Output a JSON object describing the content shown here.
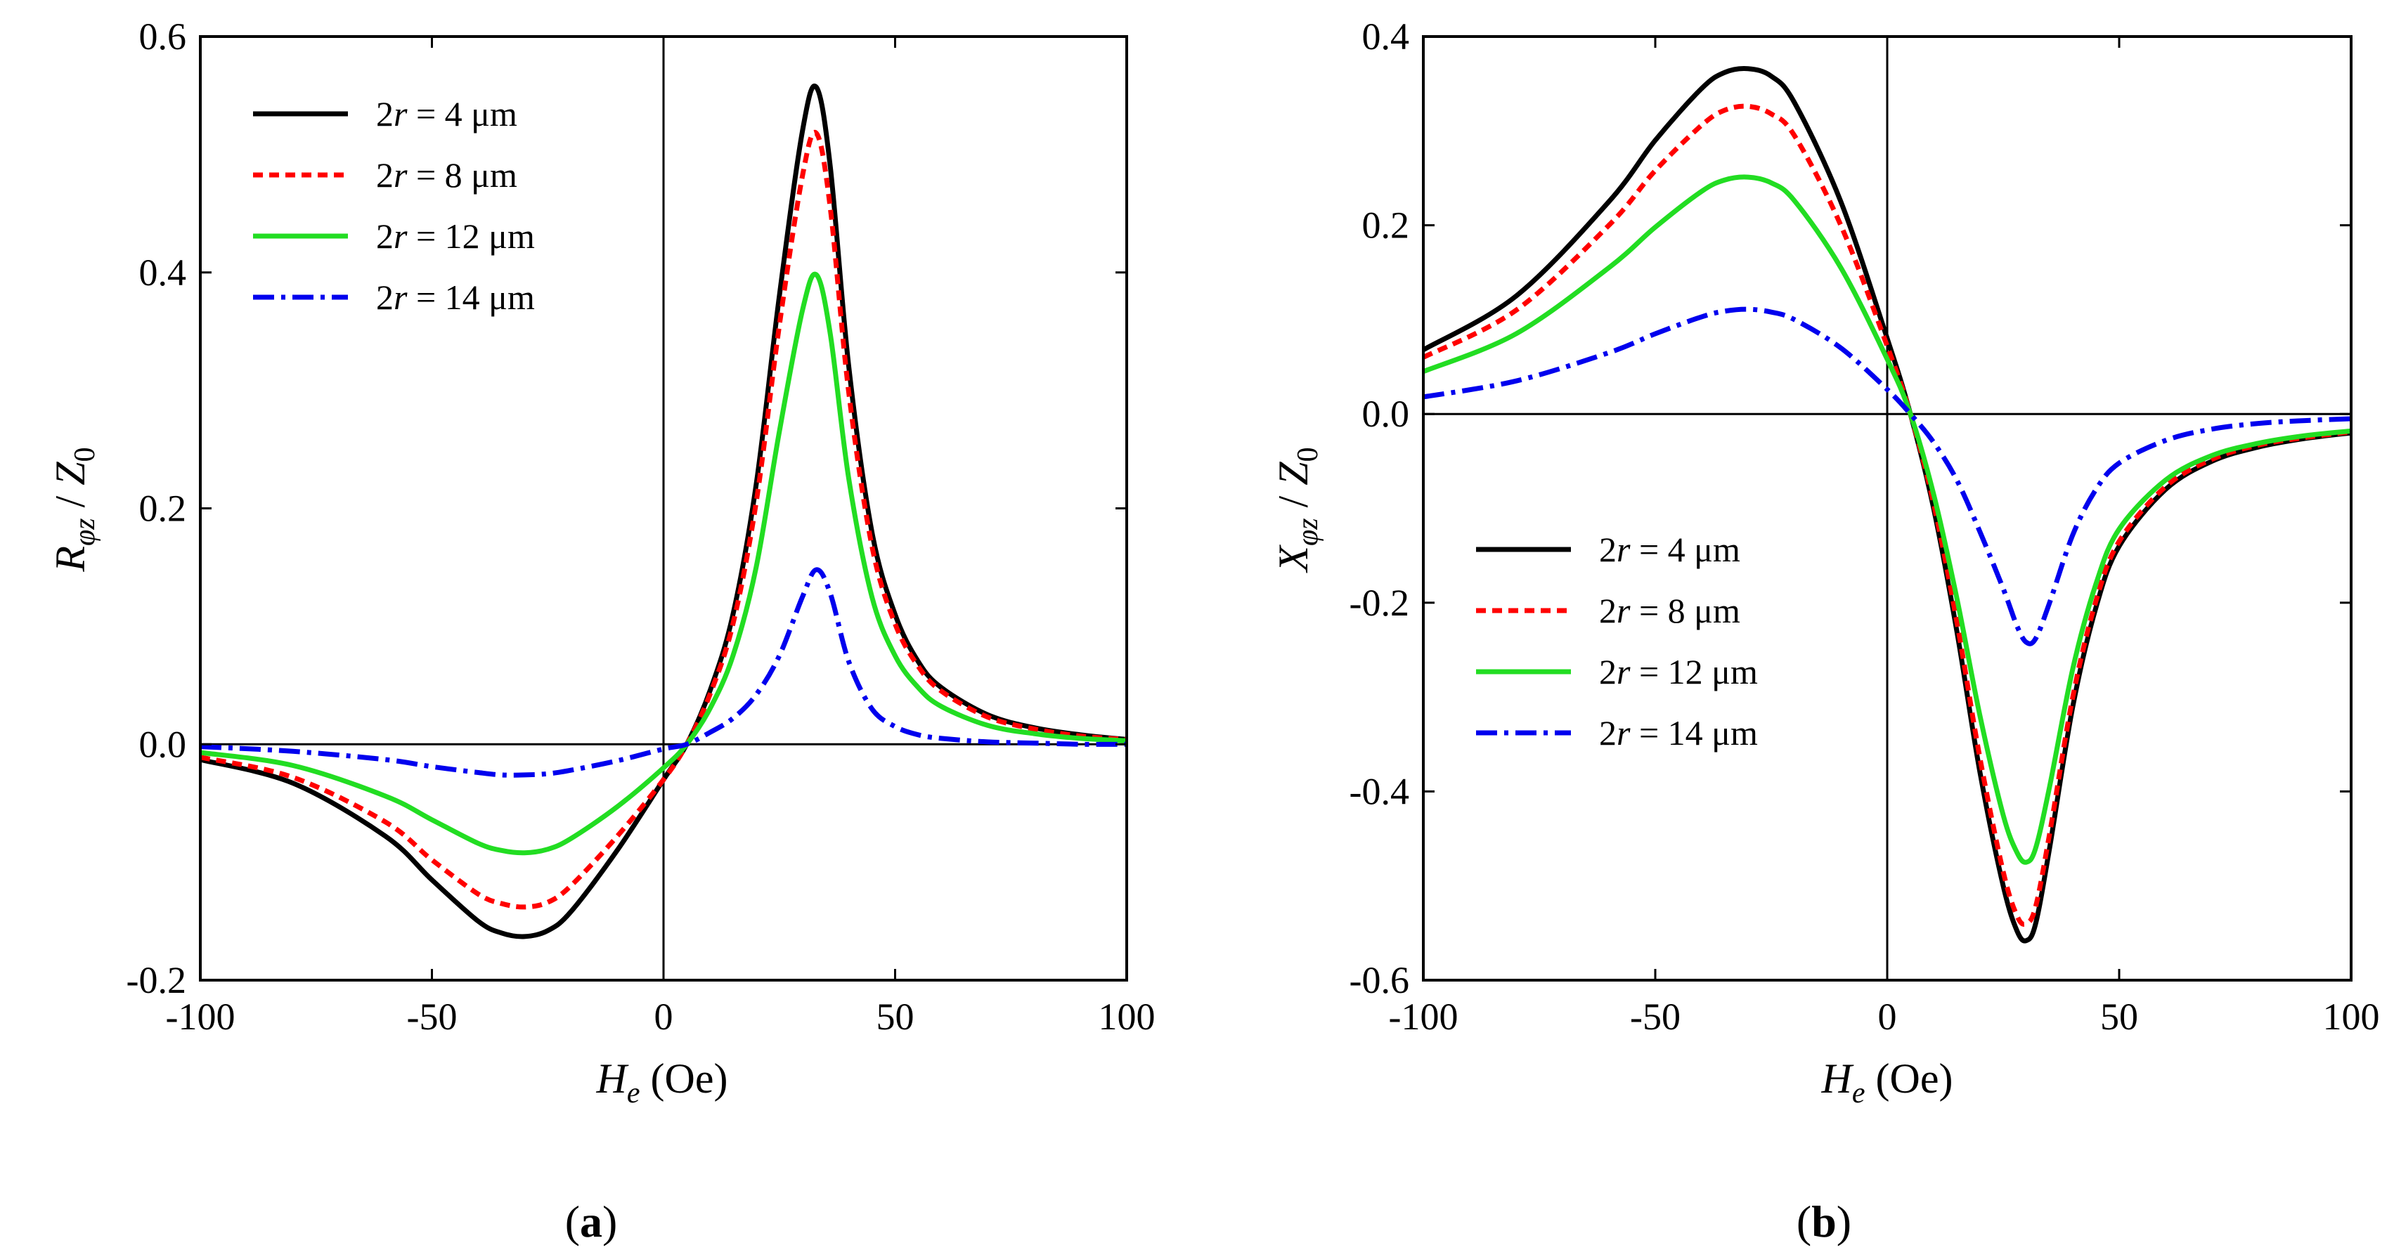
{
  "chart_data": [
    {
      "panel": "a",
      "type": "line",
      "caption_letter": "a",
      "xlabel": "He (Oe)",
      "ylabel": "Rφz / Z0",
      "xlim": [
        -100,
        100
      ],
      "ylim": [
        -0.2,
        0.6
      ],
      "xticks": [
        -100,
        -50,
        0,
        50,
        100
      ],
      "xtick_labels": [
        "-100",
        "-50",
        "0",
        "50",
        "100"
      ],
      "yticks": [
        -0.2,
        0.0,
        0.2,
        0.4,
        0.6
      ],
      "ytick_labels": [
        "-0.2",
        "0.0",
        "0.2",
        "0.4",
        "0.6"
      ],
      "legend_position": "top-left",
      "zero_lines": true,
      "series": [
        {
          "name": "2r = 4 μm",
          "legend_prefix": "2",
          "legend_var": "r",
          "legend_value": " = 4 μm",
          "color": "#000000",
          "dash": "solid",
          "x": [
            -100,
            -80,
            -60,
            -50,
            -40,
            -35,
            -30,
            -25,
            -20,
            -10,
            0,
            5,
            10,
            15,
            20,
            25,
            30,
            33,
            36,
            40,
            45,
            50,
            55,
            60,
            70,
            80,
            90,
            100
          ],
          "y": [
            -0.013,
            -0.033,
            -0.078,
            -0.115,
            -0.15,
            -0.16,
            -0.163,
            -0.158,
            -0.142,
            -0.09,
            -0.03,
            0.0,
            0.045,
            0.11,
            0.22,
            0.38,
            0.52,
            0.557,
            0.49,
            0.32,
            0.18,
            0.11,
            0.07,
            0.048,
            0.025,
            0.014,
            0.008,
            0.004
          ]
        },
        {
          "name": "2r = 8 μm",
          "legend_prefix": "2",
          "legend_var": "r",
          "legend_value": " = 8 μm",
          "color": "#ff0000",
          "dash": "dashed",
          "x": [
            -100,
            -80,
            -60,
            -50,
            -40,
            -35,
            -30,
            -25,
            -20,
            -10,
            0,
            5,
            10,
            15,
            20,
            25,
            30,
            33,
            36,
            40,
            45,
            50,
            55,
            60,
            70,
            80,
            90,
            100
          ],
          "y": [
            -0.011,
            -0.028,
            -0.066,
            -0.098,
            -0.127,
            -0.135,
            -0.138,
            -0.134,
            -0.12,
            -0.078,
            -0.03,
            0.0,
            0.042,
            0.102,
            0.205,
            0.355,
            0.482,
            0.518,
            0.455,
            0.298,
            0.168,
            0.102,
            0.066,
            0.045,
            0.023,
            0.013,
            0.007,
            0.004
          ]
        },
        {
          "name": "2r = 12 μm",
          "legend_prefix": "2",
          "legend_var": "r",
          "legend_value": " = 12 μm",
          "color": "#22dd22",
          "dash": "solid",
          "x": [
            -100,
            -80,
            -60,
            -50,
            -40,
            -35,
            -30,
            -25,
            -20,
            -10,
            0,
            5,
            10,
            15,
            20,
            25,
            30,
            33,
            36,
            40,
            45,
            50,
            55,
            60,
            70,
            80,
            90,
            100
          ],
          "y": [
            -0.007,
            -0.018,
            -0.044,
            -0.064,
            -0.084,
            -0.09,
            -0.092,
            -0.089,
            -0.08,
            -0.053,
            -0.02,
            0.0,
            0.03,
            0.075,
            0.15,
            0.265,
            0.368,
            0.398,
            0.348,
            0.225,
            0.125,
            0.075,
            0.048,
            0.032,
            0.016,
            0.009,
            0.005,
            0.003
          ]
        },
        {
          "name": "2r = 14 μm",
          "legend_prefix": "2",
          "legend_var": "r",
          "legend_value": " = 14 μm",
          "color": "#0000ee",
          "dash": "dashdot",
          "x": [
            -100,
            -80,
            -60,
            -50,
            -40,
            -35,
            -30,
            -25,
            -20,
            -10,
            0,
            5,
            10,
            15,
            20,
            25,
            30,
            33,
            36,
            40,
            45,
            50,
            55,
            60,
            70,
            80,
            90,
            100
          ],
          "y": [
            -0.002,
            -0.006,
            -0.013,
            -0.019,
            -0.024,
            -0.026,
            -0.026,
            -0.025,
            -0.022,
            -0.014,
            -0.004,
            0.0,
            0.01,
            0.022,
            0.042,
            0.075,
            0.125,
            0.148,
            0.128,
            0.07,
            0.03,
            0.015,
            0.008,
            0.005,
            0.002,
            0.001,
            0.0,
            0.0
          ]
        }
      ]
    },
    {
      "panel": "b",
      "type": "line",
      "caption_letter": "b",
      "xlabel": "He (Oe)",
      "ylabel": "Xφz / Z0",
      "xlim": [
        -100,
        100
      ],
      "ylim": [
        -0.6,
        0.4
      ],
      "xticks": [
        -100,
        -50,
        0,
        50,
        100
      ],
      "xtick_labels": [
        "-100",
        "-50",
        "0",
        "50",
        "100"
      ],
      "yticks": [
        -0.6,
        -0.4,
        -0.2,
        0.0,
        0.2,
        0.4
      ],
      "ytick_labels": [
        "-0.6",
        "-0.4",
        "-0.2",
        "0.0",
        "0.2",
        "0.4"
      ],
      "legend_position": "bottom-left",
      "zero_lines": true,
      "series": [
        {
          "name": "2r = 4 μm",
          "legend_prefix": "2",
          "legend_var": "r",
          "legend_value": " = 4 μm",
          "color": "#000000",
          "dash": "solid",
          "x": [
            -100,
            -80,
            -60,
            -50,
            -40,
            -35,
            -30,
            -25,
            -20,
            -10,
            0,
            5,
            10,
            15,
            20,
            25,
            28,
            30,
            32,
            35,
            40,
            45,
            50,
            60,
            70,
            80,
            90,
            100
          ],
          "y": [
            0.068,
            0.125,
            0.225,
            0.29,
            0.345,
            0.362,
            0.366,
            0.358,
            0.33,
            0.225,
            0.08,
            0.0,
            -0.1,
            -0.23,
            -0.38,
            -0.5,
            -0.548,
            -0.558,
            -0.54,
            -0.46,
            -0.31,
            -0.205,
            -0.14,
            -0.08,
            -0.05,
            -0.035,
            -0.026,
            -0.02
          ]
        },
        {
          "name": "2r = 8 μm",
          "legend_prefix": "2",
          "legend_var": "r",
          "legend_value": " = 8 μm",
          "color": "#ff0000",
          "dash": "dashed",
          "x": [
            -100,
            -80,
            -60,
            -50,
            -40,
            -35,
            -30,
            -25,
            -20,
            -10,
            0,
            5,
            10,
            15,
            20,
            25,
            28,
            30,
            32,
            35,
            40,
            45,
            50,
            60,
            70,
            80,
            90,
            100
          ],
          "y": [
            0.06,
            0.11,
            0.2,
            0.258,
            0.306,
            0.322,
            0.326,
            0.318,
            0.295,
            0.2,
            0.072,
            0.0,
            -0.095,
            -0.22,
            -0.365,
            -0.485,
            -0.532,
            -0.54,
            -0.522,
            -0.445,
            -0.3,
            -0.198,
            -0.135,
            -0.077,
            -0.048,
            -0.033,
            -0.025,
            -0.019
          ]
        },
        {
          "name": "2r = 12 μm",
          "legend_prefix": "2",
          "legend_var": "r",
          "legend_value": " = 12 μm",
          "color": "#22dd22",
          "dash": "solid",
          "x": [
            -100,
            -80,
            -60,
            -50,
            -40,
            -35,
            -30,
            -25,
            -20,
            -10,
            0,
            5,
            10,
            15,
            20,
            25,
            28,
            30,
            32,
            35,
            40,
            45,
            50,
            60,
            70,
            80,
            90,
            100
          ],
          "y": [
            0.045,
            0.085,
            0.155,
            0.198,
            0.236,
            0.248,
            0.251,
            0.245,
            0.226,
            0.155,
            0.058,
            0.0,
            -0.085,
            -0.195,
            -0.32,
            -0.425,
            -0.465,
            -0.475,
            -0.46,
            -0.395,
            -0.27,
            -0.18,
            -0.122,
            -0.07,
            -0.044,
            -0.031,
            -0.023,
            -0.018
          ]
        },
        {
          "name": "2r = 14 μm",
          "legend_prefix": "2",
          "legend_var": "r",
          "legend_value": " = 14 μm",
          "color": "#0000ee",
          "dash": "dashdot",
          "x": [
            -100,
            -80,
            -60,
            -50,
            -40,
            -35,
            -30,
            -25,
            -20,
            -10,
            0,
            5,
            10,
            15,
            20,
            25,
            28,
            30,
            32,
            35,
            40,
            45,
            50,
            60,
            70,
            80,
            90,
            100
          ],
          "y": [
            0.018,
            0.035,
            0.065,
            0.085,
            0.103,
            0.109,
            0.111,
            0.108,
            0.1,
            0.07,
            0.026,
            0.0,
            -0.03,
            -0.07,
            -0.125,
            -0.185,
            -0.225,
            -0.242,
            -0.238,
            -0.2,
            -0.128,
            -0.08,
            -0.052,
            -0.028,
            -0.016,
            -0.01,
            -0.007,
            -0.005
          ]
        }
      ]
    }
  ]
}
